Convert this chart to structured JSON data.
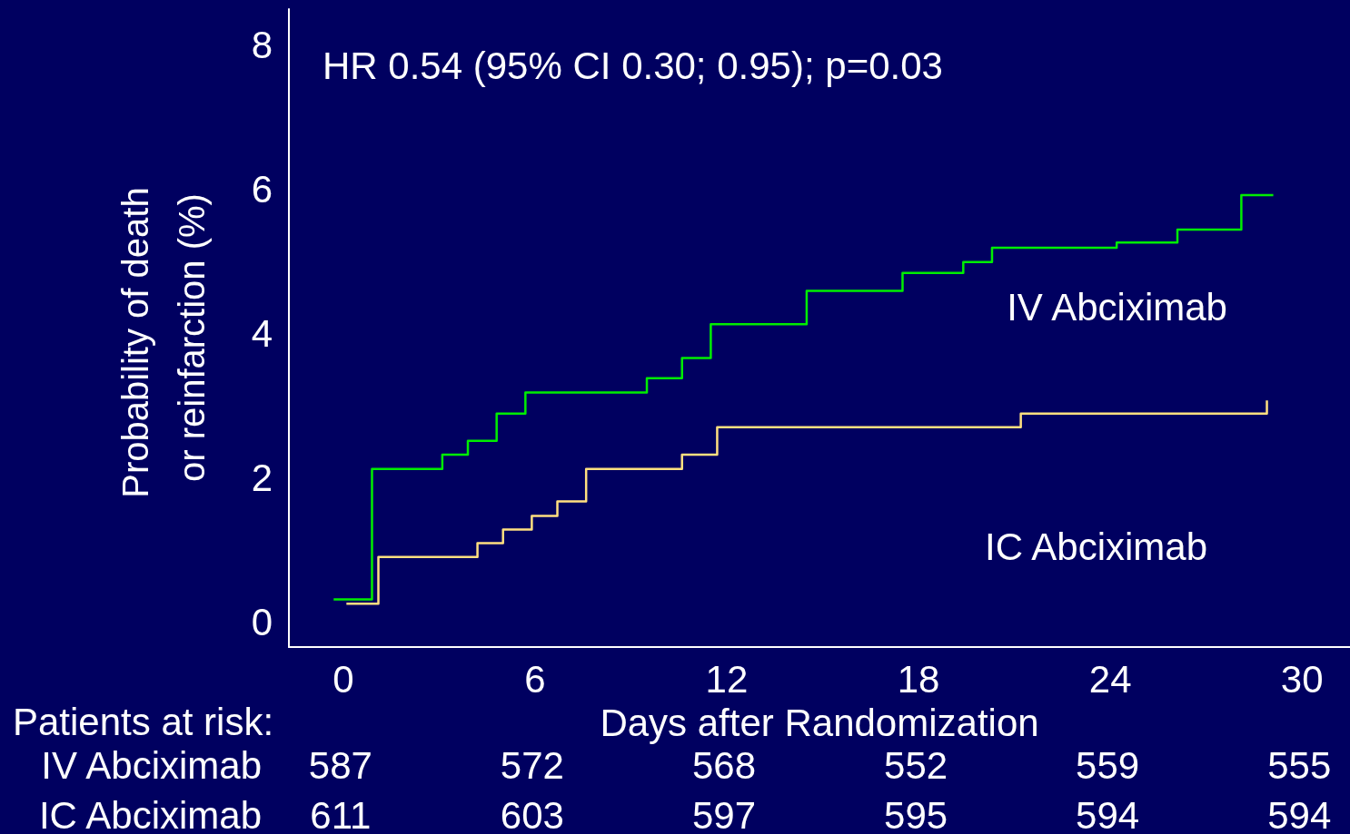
{
  "chart_data": {
    "type": "step",
    "xlabel": "Days after Randomization",
    "ylabel": "Probability of death or reinfarction (%)",
    "annotations": [
      "HR 0.54 (95% CI 0.30; 0.95); p=0.03",
      "Patients at risk:",
      "587",
      "572",
      "568",
      "552",
      "559",
      "555",
      "611",
      "603",
      "597",
      "595",
      "594",
      "594"
    ],
    "xlim": [
      -1.7,
      31.5
    ],
    "xticks": [
      0,
      6,
      12,
      18,
      24,
      30
    ],
    "ylim": [
      -0.35,
      8.5
    ],
    "yticks": [
      0,
      2,
      4,
      6,
      8
    ],
    "grid": false,
    "legend": false,
    "marker": "none",
    "line_style": "solid",
    "series": [
      {
        "name": "IV Abciximab",
        "color": "#00ee00",
        "x": [
          -0.3,
          0.9,
          3.1,
          3.9,
          4.8,
          5.7,
          9.5,
          10.6,
          11.5,
          14.5,
          17.5,
          19.4,
          20.3,
          24.2,
          26.1,
          28.1,
          29.1
        ],
        "values": [
          0.31,
          2.12,
          2.32,
          2.51,
          2.89,
          3.18,
          3.38,
          3.66,
          4.13,
          4.59,
          4.84,
          4.99,
          5.19,
          5.26,
          5.44,
          5.92,
          5.92
        ]
      },
      {
        "name": "IC Abciximab",
        "color": "#ffe080",
        "x": [
          0.1,
          1.1,
          4.2,
          5.0,
          5.9,
          6.7,
          7.6,
          10.6,
          11.7,
          21.2,
          28.9
        ],
        "values": [
          0.25,
          0.9,
          1.09,
          1.28,
          1.47,
          1.67,
          2.12,
          2.32,
          2.7,
          2.89,
          3.07
        ]
      }
    ]
  }
}
